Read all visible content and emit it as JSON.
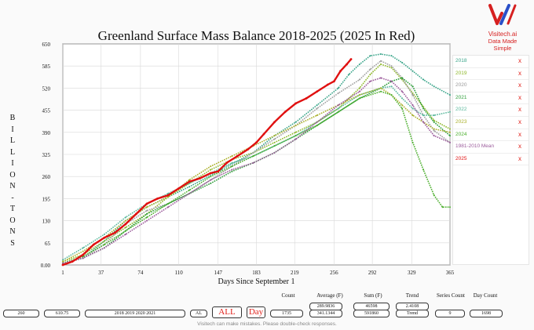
{
  "chart_data": {
    "type": "line",
    "title": "Greenland Surface Mass Balance 2018-2025 (2025 In Red)",
    "xlabel": "Days Since September 1",
    "ylabel": "B I L L I O N - T O N S",
    "xlim": [
      1,
      365
    ],
    "ylim": [
      0,
      650
    ],
    "xticks": [
      1,
      37,
      74,
      110,
      147,
      183,
      219,
      256,
      292,
      329,
      365
    ],
    "yticks": [
      "0.00",
      "65",
      "130",
      "195",
      "260",
      "325",
      "390",
      "455",
      "520",
      "585",
      "650"
    ],
    "grid": true,
    "legend_position": "right",
    "series": [
      {
        "name": "2018",
        "color": "#3aa58a",
        "points": [
          [
            1,
            5
          ],
          [
            20,
            20
          ],
          [
            40,
            70
          ],
          [
            60,
            130
          ],
          [
            80,
            170
          ],
          [
            100,
            200
          ],
          [
            120,
            230
          ],
          [
            150,
            280
          ],
          [
            180,
            330
          ],
          [
            200,
            380
          ],
          [
            220,
            420
          ],
          [
            240,
            470
          ],
          [
            260,
            520
          ],
          [
            270,
            560
          ],
          [
            280,
            590
          ],
          [
            290,
            615
          ],
          [
            300,
            620
          ],
          [
            310,
            615
          ],
          [
            320,
            595
          ],
          [
            330,
            570
          ],
          [
            340,
            545
          ],
          [
            350,
            525
          ],
          [
            365,
            500
          ]
        ]
      },
      {
        "name": "2019",
        "color": "#8fb82a",
        "points": [
          [
            1,
            10
          ],
          [
            20,
            30
          ],
          [
            40,
            70
          ],
          [
            60,
            110
          ],
          [
            80,
            150
          ],
          [
            100,
            200
          ],
          [
            120,
            240
          ],
          [
            140,
            280
          ],
          [
            160,
            310
          ],
          [
            180,
            330
          ],
          [
            200,
            360
          ],
          [
            220,
            390
          ],
          [
            240,
            420
          ],
          [
            260,
            460
          ],
          [
            280,
            520
          ],
          [
            290,
            560
          ],
          [
            300,
            590
          ],
          [
            310,
            580
          ],
          [
            320,
            545
          ],
          [
            330,
            505
          ],
          [
            340,
            465
          ],
          [
            350,
            425
          ],
          [
            365,
            400
          ]
        ]
      },
      {
        "name": "2020",
        "color": "#a0a0a0",
        "points": [
          [
            1,
            5
          ],
          [
            20,
            20
          ],
          [
            40,
            60
          ],
          [
            60,
            120
          ],
          [
            80,
            160
          ],
          [
            100,
            180
          ],
          [
            120,
            210
          ],
          [
            140,
            250
          ],
          [
            160,
            290
          ],
          [
            180,
            330
          ],
          [
            200,
            370
          ],
          [
            220,
            410
          ],
          [
            240,
            460
          ],
          [
            260,
            505
          ],
          [
            280,
            545
          ],
          [
            290,
            575
          ],
          [
            300,
            600
          ],
          [
            310,
            585
          ],
          [
            320,
            550
          ],
          [
            330,
            500
          ],
          [
            340,
            440
          ],
          [
            350,
            395
          ],
          [
            365,
            360
          ]
        ]
      },
      {
        "name": "2021",
        "color": "#2e9e3a",
        "points": [
          [
            1,
            5
          ],
          [
            20,
            20
          ],
          [
            40,
            50
          ],
          [
            60,
            100
          ],
          [
            80,
            150
          ],
          [
            100,
            180
          ],
          [
            120,
            210
          ],
          [
            140,
            240
          ],
          [
            160,
            275
          ],
          [
            180,
            300
          ],
          [
            200,
            330
          ],
          [
            220,
            370
          ],
          [
            240,
            410
          ],
          [
            260,
            450
          ],
          [
            280,
            490
          ],
          [
            300,
            520
          ],
          [
            310,
            540
          ],
          [
            320,
            550
          ],
          [
            330,
            525
          ],
          [
            340,
            460
          ],
          [
            350,
            420
          ],
          [
            365,
            380
          ]
        ]
      },
      {
        "name": "2022",
        "color": "#5ab89c",
        "points": [
          [
            1,
            15
          ],
          [
            20,
            50
          ],
          [
            40,
            90
          ],
          [
            60,
            140
          ],
          [
            80,
            180
          ],
          [
            100,
            210
          ],
          [
            120,
            240
          ],
          [
            140,
            270
          ],
          [
            160,
            300
          ],
          [
            180,
            320
          ],
          [
            200,
            350
          ],
          [
            220,
            380
          ],
          [
            240,
            420
          ],
          [
            260,
            460
          ],
          [
            280,
            500
          ],
          [
            300,
            520
          ],
          [
            310,
            525
          ],
          [
            320,
            490
          ],
          [
            330,
            460
          ],
          [
            340,
            440
          ],
          [
            350,
            440
          ],
          [
            365,
            450
          ]
        ]
      },
      {
        "name": "2023",
        "color": "#aab02a",
        "points": [
          [
            1,
            10
          ],
          [
            20,
            40
          ],
          [
            40,
            80
          ],
          [
            60,
            130
          ],
          [
            80,
            170
          ],
          [
            100,
            200
          ],
          [
            120,
            250
          ],
          [
            140,
            290
          ],
          [
            160,
            320
          ],
          [
            180,
            350
          ],
          [
            200,
            380
          ],
          [
            220,
            410
          ],
          [
            240,
            440
          ],
          [
            260,
            470
          ],
          [
            280,
            500
          ],
          [
            300,
            520
          ],
          [
            310,
            500
          ],
          [
            320,
            470
          ],
          [
            330,
            440
          ],
          [
            340,
            420
          ],
          [
            350,
            400
          ],
          [
            365,
            390
          ]
        ]
      },
      {
        "name": "2024",
        "color": "#4caf2e",
        "points": [
          [
            1,
            5
          ],
          [
            20,
            25
          ],
          [
            40,
            60
          ],
          [
            60,
            100
          ],
          [
            80,
            140
          ],
          [
            100,
            180
          ],
          [
            120,
            220
          ],
          [
            140,
            260
          ],
          [
            160,
            290
          ],
          [
            180,
            320
          ],
          [
            200,
            350
          ],
          [
            220,
            380
          ],
          [
            240,
            410
          ],
          [
            260,
            450
          ],
          [
            280,
            490
          ],
          [
            300,
            510
          ],
          [
            310,
            500
          ],
          [
            320,
            460
          ],
          [
            330,
            360
          ],
          [
            340,
            280
          ],
          [
            350,
            205
          ],
          [
            358,
            170
          ],
          [
            365,
            170
          ]
        ]
      },
      {
        "name": "1981-2010 Mean",
        "color": "#9c5c9c",
        "points": [
          [
            1,
            5
          ],
          [
            20,
            20
          ],
          [
            40,
            50
          ],
          [
            60,
            90
          ],
          [
            80,
            130
          ],
          [
            100,
            170
          ],
          [
            120,
            210
          ],
          [
            140,
            250
          ],
          [
            160,
            280
          ],
          [
            180,
            300
          ],
          [
            200,
            330
          ],
          [
            220,
            370
          ],
          [
            240,
            420
          ],
          [
            260,
            470
          ],
          [
            280,
            510
          ],
          [
            290,
            540
          ],
          [
            300,
            550
          ],
          [
            310,
            540
          ],
          [
            320,
            510
          ],
          [
            330,
            470
          ],
          [
            340,
            420
          ],
          [
            350,
            380
          ],
          [
            365,
            360
          ]
        ]
      },
      {
        "name": "2025",
        "color": "#e01010",
        "points": [
          [
            1,
            0
          ],
          [
            10,
            10
          ],
          [
            20,
            30
          ],
          [
            30,
            60
          ],
          [
            40,
            80
          ],
          [
            50,
            95
          ],
          [
            60,
            120
          ],
          [
            70,
            150
          ],
          [
            80,
            180
          ],
          [
            90,
            195
          ],
          [
            100,
            205
          ],
          [
            110,
            225
          ],
          [
            120,
            245
          ],
          [
            130,
            255
          ],
          [
            140,
            270
          ],
          [
            147,
            275
          ],
          [
            155,
            300
          ],
          [
            165,
            320
          ],
          [
            175,
            340
          ],
          [
            183,
            360
          ],
          [
            190,
            385
          ],
          [
            200,
            420
          ],
          [
            210,
            450
          ],
          [
            220,
            475
          ],
          [
            230,
            490
          ],
          [
            240,
            510
          ],
          [
            250,
            530
          ],
          [
            256,
            540
          ],
          [
            262,
            570
          ],
          [
            268,
            590
          ],
          [
            272,
            605
          ]
        ]
      }
    ]
  },
  "legend": {
    "items": [
      {
        "label": "2018",
        "color": "#3aa58a",
        "remove": "x"
      },
      {
        "label": "2019",
        "color": "#8fb82a",
        "remove": "x"
      },
      {
        "label": "2020",
        "color": "#9a9a9a",
        "remove": "x"
      },
      {
        "label": "2021",
        "color": "#2e9e3a",
        "remove": "x"
      },
      {
        "label": "2022",
        "color": "#5ab89c",
        "remove": "x"
      },
      {
        "label": "2023",
        "color": "#aab02a",
        "remove": "x"
      },
      {
        "label": "2024",
        "color": "#4caf2e",
        "remove": "x"
      },
      {
        "label": "1981-2010 Mean",
        "color": "#9c5c9c",
        "remove": "x"
      },
      {
        "label": "2025",
        "color": "#e01010",
        "remove": "x"
      }
    ]
  },
  "logo": {
    "name": "Visitech.ai",
    "tagline": "Data Made Simple"
  },
  "controls": {
    "box1": "260",
    "box2": "610.75",
    "years": "2018 2019 2020 2021",
    "al": "AL",
    "all_btn": "ALL",
    "day_btn": "Day",
    "count_label": "Count",
    "count_value": "1735",
    "average_label": "Average (F)",
    "average_top": "289.9836",
    "average_value": "341.1344",
    "sum_label": "Sum (F)",
    "sum_top": "46598",
    "sum_value": "591860",
    "trend_label": "Trend",
    "trend_top": "2.4108",
    "trend_value": "Trend",
    "series_count_label": "Series Count",
    "series_count_value": "9",
    "day_count_label": "Day Count",
    "day_count_value": "1698"
  },
  "footer": "Visitech can make mistakes. Please double-check responses."
}
